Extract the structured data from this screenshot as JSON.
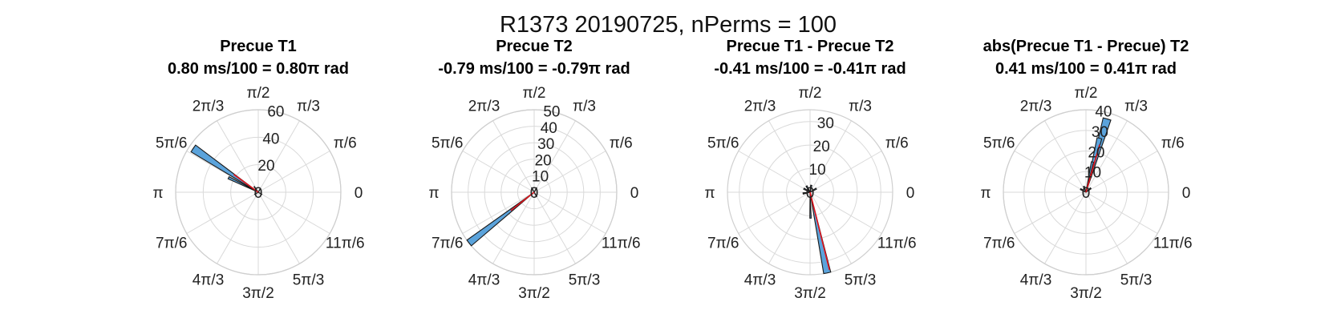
{
  "figure": {
    "suptitle": "R1373 20190725, nPerms = 100"
  },
  "chart_data": [
    {
      "type": "polar-histogram",
      "title": "Precue T1",
      "subtitle": "0.80 ms/100 = 0.80π rad",
      "rlim": [
        0,
        60
      ],
      "rticks": [
        "20",
        "40",
        "60"
      ],
      "rtick_values": [
        20,
        40,
        60
      ],
      "theta_ticks": [
        "0",
        "π/6",
        "π/3",
        "π/2",
        "2π/3",
        "5π/6",
        "π",
        "7π/6",
        "4π/3",
        "3π/2",
        "5π/3",
        "11π/6"
      ],
      "bars": [
        {
          "theta_deg": 146,
          "width_deg": 6,
          "value": 57
        },
        {
          "theta_deg": 154,
          "width_deg": 4,
          "value": 24
        },
        {
          "theta_deg": 126,
          "width_deg": 4,
          "value": 5
        },
        {
          "theta_deg": 210,
          "width_deg": 4,
          "value": 3
        },
        {
          "theta_deg": 330,
          "width_deg": 4,
          "value": 3
        },
        {
          "theta_deg": 60,
          "width_deg": 4,
          "value": 3
        }
      ],
      "mean": {
        "theta_deg": 144,
        "length": 22
      }
    },
    {
      "type": "polar-histogram",
      "title": "Precue T2",
      "subtitle": "-0.79 ms/100 = -0.79π rad",
      "rlim": [
        0,
        50
      ],
      "rticks": [
        "10",
        "20",
        "30",
        "40",
        "50"
      ],
      "rtick_values": [
        10,
        20,
        30,
        40,
        50
      ],
      "theta_ticks": [
        "0",
        "π/6",
        "π/3",
        "π/2",
        "2π/3",
        "5π/6",
        "π",
        "7π/6",
        "4π/3",
        "3π/2",
        "5π/3",
        "11π/6"
      ],
      "bars": [
        {
          "theta_deg": 218,
          "width_deg": 5,
          "value": 50
        },
        {
          "theta_deg": 120,
          "width_deg": 5,
          "value": 3
        },
        {
          "theta_deg": 60,
          "width_deg": 5,
          "value": 3
        },
        {
          "theta_deg": 300,
          "width_deg": 5,
          "value": 3
        }
      ],
      "mean": {
        "theta_deg": 218,
        "length": 18
      }
    },
    {
      "type": "polar-histogram",
      "title": "Precue T1 - Precue T2",
      "subtitle": "-0.41 ms/100 = -0.41π rad",
      "rlim": [
        0,
        35
      ],
      "rticks": [
        "10",
        "20",
        "30"
      ],
      "rtick_values": [
        10,
        20,
        30
      ],
      "theta_ticks": [
        "0",
        "π/6",
        "π/3",
        "π/2",
        "2π/3",
        "5π/6",
        "π",
        "7π/6",
        "4π/3",
        "3π/2",
        "5π/3",
        "11π/6"
      ],
      "bars": [
        {
          "theta_deg": 282,
          "width_deg": 5,
          "value": 35
        },
        {
          "theta_deg": 271,
          "width_deg": 3,
          "value": 11
        },
        {
          "theta_deg": 150,
          "width_deg": 10,
          "value": 3
        },
        {
          "theta_deg": 120,
          "width_deg": 10,
          "value": 3
        },
        {
          "theta_deg": 80,
          "width_deg": 10,
          "value": 3
        },
        {
          "theta_deg": 30,
          "width_deg": 10,
          "value": 3
        },
        {
          "theta_deg": 190,
          "width_deg": 10,
          "value": 3
        }
      ],
      "mean": {
        "theta_deg": 284,
        "length": 34
      }
    },
    {
      "type": "polar-histogram",
      "title": "abs(Precue T1 - Precue) T2",
      "subtitle": "0.41 ms/100 = 0.41π rad",
      "rlim": [
        0,
        40
      ],
      "rticks": [
        "10",
        "20",
        "30",
        "40"
      ],
      "rtick_values": [
        10,
        20,
        30,
        40
      ],
      "theta_ticks": [
        "0",
        "π/6",
        "π/3",
        "π/2",
        "2π/3",
        "5π/6",
        "π",
        "7π/6",
        "4π/3",
        "3π/2",
        "5π/3",
        "11π/6"
      ],
      "bars": [
        {
          "theta_deg": 74,
          "width_deg": 6,
          "value": 37
        },
        {
          "theta_deg": 76,
          "width_deg": 5,
          "value": 27
        },
        {
          "theta_deg": 78,
          "width_deg": 4,
          "value": 15
        },
        {
          "theta_deg": 110,
          "width_deg": 10,
          "value": 3
        },
        {
          "theta_deg": 40,
          "width_deg": 10,
          "value": 3
        },
        {
          "theta_deg": 150,
          "width_deg": 10,
          "value": 3
        }
      ],
      "mean": {
        "theta_deg": 74,
        "length": 24
      }
    }
  ]
}
